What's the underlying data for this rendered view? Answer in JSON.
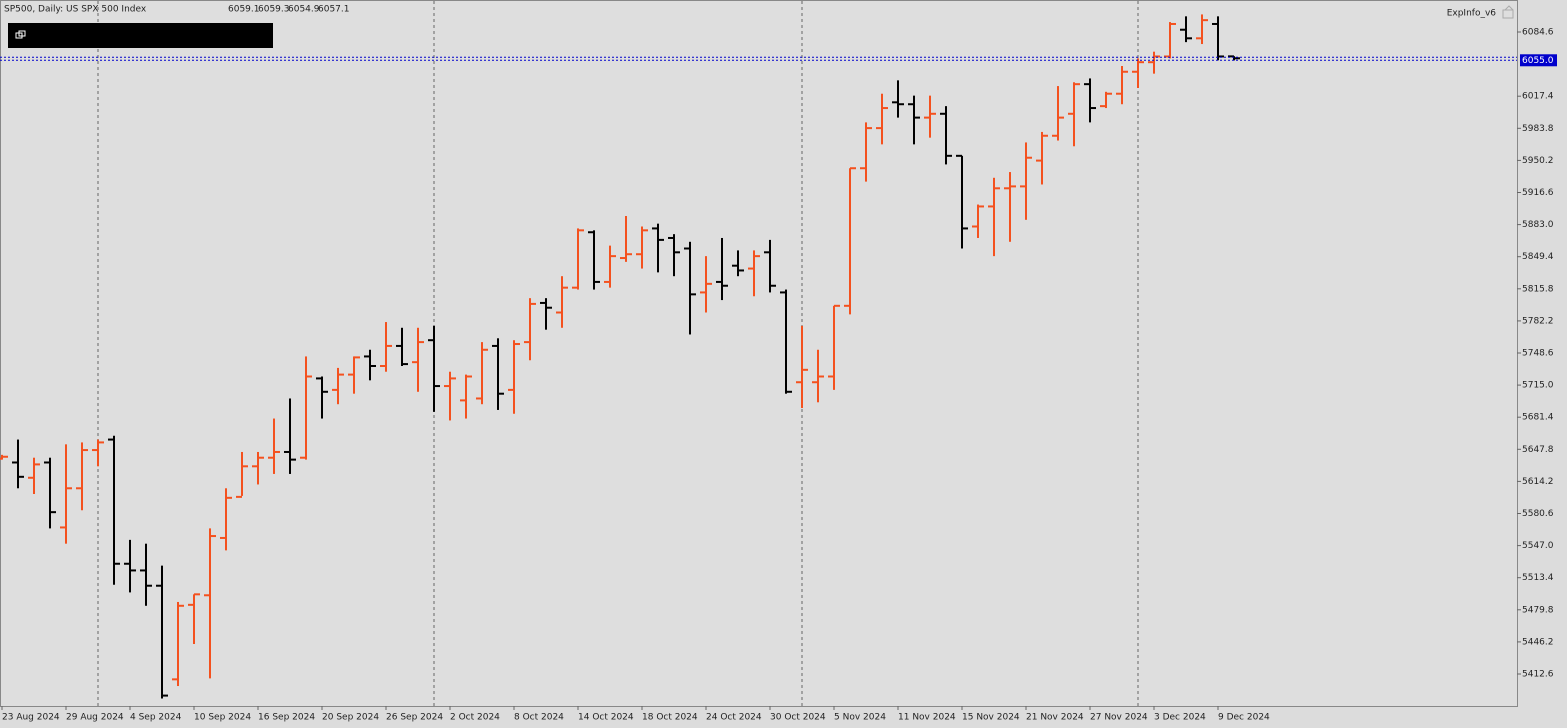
{
  "chart_data": {
    "type": "ohlc",
    "title": "SP500, Daily:  US SPX 500 Index",
    "indicator_label": "ExpInfo_v6",
    "current_price": {
      "value": 6055,
      "label": "6055.0"
    },
    "up_color": "#f4511e",
    "down_color": "#000000",
    "price_line_color": "#0000cc",
    "categories": [
      "23 Aug 2024",
      null,
      null,
      null,
      "29 Aug 2024",
      null,
      null,
      null,
      "4 Sep 2024",
      null,
      null,
      null,
      "10 Sep 2024",
      null,
      null,
      null,
      "16 Sep 2024",
      null,
      null,
      null,
      "20 Sep 2024",
      null,
      null,
      null,
      "26 Sep 2024",
      null,
      null,
      null,
      "2 Oct 2024",
      null,
      null,
      null,
      "8 Oct 2024",
      null,
      null,
      null,
      "14 Oct 2024",
      null,
      null,
      null,
      "18 Oct 2024",
      null,
      null,
      null,
      "24 Oct 2024",
      null,
      null,
      null,
      "30 Oct 2024",
      null,
      null,
      null,
      "5 Nov 2024",
      null,
      null,
      null,
      "11 Nov 2024",
      null,
      null,
      null,
      "15 Nov 2024",
      null,
      null,
      null,
      "21 Nov 2024",
      null,
      null,
      null,
      "27 Nov 2024",
      null,
      null,
      null,
      "3 Dec 2024",
      null,
      null,
      null,
      "9 Dec 2024",
      null
    ],
    "open": [
      5638,
      5634,
      5618,
      5634,
      5566,
      5607,
      5647,
      5658,
      5528,
      5521,
      5505,
      5407,
      5485,
      5495,
      5555,
      5598,
      5630,
      5639,
      5645,
      5639,
      5722,
      5710,
      5726,
      5745,
      5735,
      5756,
      5739,
      5762,
      5714,
      5699,
      5701,
      5756,
      5710,
      5760,
      5801,
      5791,
      5817,
      5875,
      5823,
      5848,
      5852,
      5879,
      5869,
      5858,
      5812,
      5823,
      5840,
      5837,
      5854,
      5812,
      5718,
      5718,
      5724,
      5798,
      5942,
      5984,
      6011,
      6009,
      5995,
      5999,
      5955,
      5881,
      5902,
      5921,
      5923,
      5950,
      5976,
      5999,
      6030,
      6007,
      6020,
      6043,
      6053,
      6059,
      6087,
      6078,
      6093,
      6059.1
    ],
    "high": [
      5642,
      5658,
      5639,
      5639,
      5653,
      5655,
      5658,
      5662,
      5553,
      5549,
      5526,
      5488,
      5496,
      5565,
      5607,
      5645,
      5645,
      5680,
      5701,
      5745,
      5724,
      5733,
      5745,
      5752,
      5781,
      5775,
      5775,
      5777,
      5729,
      5726,
      5760,
      5764,
      5762,
      5806,
      5806,
      5829,
      5879,
      5877,
      5861,
      5892,
      5881,
      5884,
      5873,
      5865,
      5850,
      5869,
      5856,
      5856,
      5867,
      5815,
      5777,
      5752,
      5798,
      5942,
      5990,
      6020,
      6034,
      6018,
      6018,
      6007,
      5955,
      5904,
      5932,
      5938,
      5969,
      5980,
      6028,
      6032,
      6036,
      6022,
      6049,
      6057,
      6064,
      6095,
      6101,
      6103,
      6101,
      6059.3
    ],
    "low": [
      5637,
      5607,
      5601,
      5565,
      5549,
      5584,
      5630,
      5506,
      5498,
      5484,
      5387,
      5400,
      5444,
      5408,
      5542,
      5599,
      5611,
      5622,
      5622,
      5637,
      5680,
      5695,
      5706,
      5720,
      5729,
      5735,
      5708,
      5687,
      5678,
      5680,
      5695,
      5689,
      5685,
      5741,
      5773,
      5775,
      5815,
      5815,
      5817,
      5844,
      5837,
      5833,
      5829,
      5768,
      5791,
      5804,
      5829,
      5808,
      5812,
      5706,
      5691,
      5697,
      5710,
      5789,
      5928,
      5967,
      5995,
      5967,
      5974,
      5946,
      5858,
      5869,
      5850,
      5865,
      5888,
      5925,
      5971,
      5965,
      5990,
      6005,
      6009,
      6026,
      6041,
      6057,
      6074,
      6072,
      6055,
      6054.9
    ],
    "close": [
      5640,
      5619,
      5632,
      5582,
      5607,
      5647,
      5655,
      5528,
      5521,
      5505,
      5390,
      5484,
      5496,
      5557,
      5597,
      5630,
      5639,
      5645,
      5637,
      5724,
      5708,
      5726,
      5744,
      5735,
      5756,
      5737,
      5760,
      5714,
      5722,
      5724,
      5752,
      5706,
      5758,
      5800,
      5796,
      5817,
      5877,
      5823,
      5850,
      5852,
      5877,
      5867,
      5854,
      5810,
      5821,
      5819,
      5835,
      5850,
      5819,
      5708,
      5731,
      5724,
      5798,
      5942,
      5984,
      6005,
      6009,
      5995,
      5999,
      5955,
      5879,
      5902,
      5921,
      5923,
      5953,
      5976,
      5995,
      6030,
      6005,
      6020,
      6043,
      6053,
      6059,
      6093,
      6078,
      6097,
      6059,
      6057.1
    ],
    "ylim": [
      5379.1,
      6118.1
    ],
    "yticks": [
      6084.6,
      6017.4,
      5983.8,
      5950.2,
      5916.6,
      {
        "value": 5883,
        "label": "5883.0"
      },
      5849.4,
      5815.8,
      5782.2,
      5748.6,
      {
        "value": 5715,
        "label": "5715.0"
      },
      5681.4,
      5647.8,
      5614.2,
      5580.6,
      {
        "value": 5547,
        "label": "5547.0"
      },
      5513.4,
      5479.8,
      5446.2,
      5412.6
    ]
  }
}
